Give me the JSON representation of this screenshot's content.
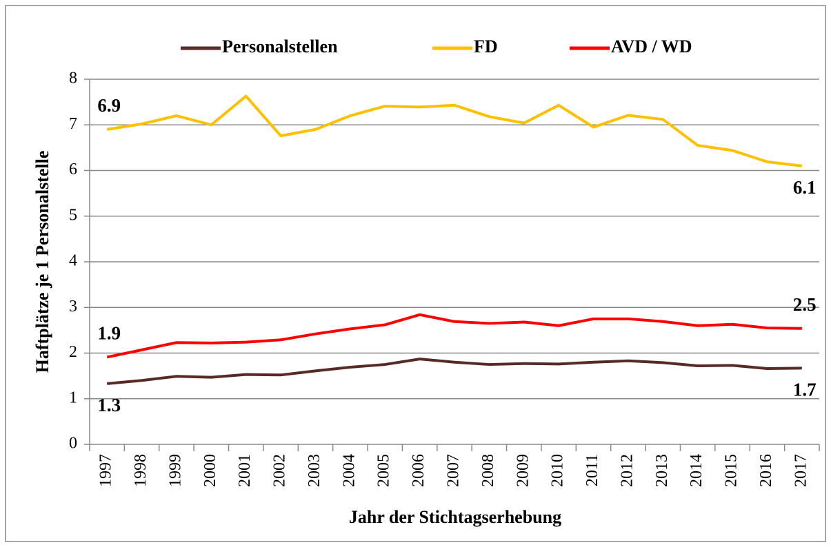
{
  "chart_data": {
    "type": "line",
    "x_label": "Jahr der Stichtagserhebung",
    "y_label": "Haftplätze je 1 Personalstelle",
    "categories": [
      "1997",
      "1998",
      "1999",
      "2000",
      "2001",
      "2002",
      "2003",
      "2004",
      "2005",
      "2006",
      "2007",
      "2008",
      "2009",
      "2010",
      "2011",
      "2012",
      "2013",
      "2014",
      "2015",
      "2016",
      "2017"
    ],
    "series": [
      {
        "name": "Personalstellen",
        "color": "#582a26",
        "values": [
          1.33,
          1.4,
          1.49,
          1.47,
          1.53,
          1.52,
          1.61,
          1.69,
          1.75,
          1.87,
          1.8,
          1.75,
          1.77,
          1.76,
          1.8,
          1.83,
          1.79,
          1.72,
          1.73,
          1.66,
          1.67
        ],
        "value_labels": [
          "1.3",
          null,
          null,
          null,
          null,
          null,
          null,
          null,
          null,
          null,
          null,
          null,
          null,
          null,
          null,
          null,
          null,
          null,
          null,
          null,
          "1.7"
        ]
      },
      {
        "name": "FD",
        "color": "#ffc000",
        "values": [
          6.9,
          7.02,
          7.2,
          7.0,
          7.63,
          6.76,
          6.9,
          7.2,
          7.41,
          7.39,
          7.43,
          7.18,
          7.04,
          7.43,
          6.95,
          7.21,
          7.12,
          6.55,
          6.44,
          6.19,
          6.1
        ],
        "value_labels": [
          "6.9",
          null,
          null,
          null,
          null,
          null,
          null,
          null,
          null,
          null,
          null,
          null,
          null,
          null,
          null,
          null,
          null,
          null,
          null,
          null,
          "6.1"
        ]
      },
      {
        "name": "AVD / WD",
        "color": "#ff0000",
        "values": [
          1.91,
          2.07,
          2.23,
          2.22,
          2.24,
          2.29,
          2.42,
          2.53,
          2.62,
          2.84,
          2.69,
          2.65,
          2.68,
          2.6,
          2.75,
          2.75,
          2.69,
          2.6,
          2.63,
          2.55,
          2.54
        ],
        "value_labels": [
          "1.9",
          null,
          null,
          null,
          null,
          null,
          null,
          null,
          null,
          null,
          null,
          null,
          null,
          null,
          null,
          null,
          null,
          null,
          null,
          null,
          "2.5"
        ]
      }
    ],
    "ylim": [
      0,
      8
    ],
    "yticks": [
      0,
      1,
      2,
      3,
      4,
      5,
      6,
      7,
      8
    ],
    "grid": true,
    "legend": "top"
  }
}
